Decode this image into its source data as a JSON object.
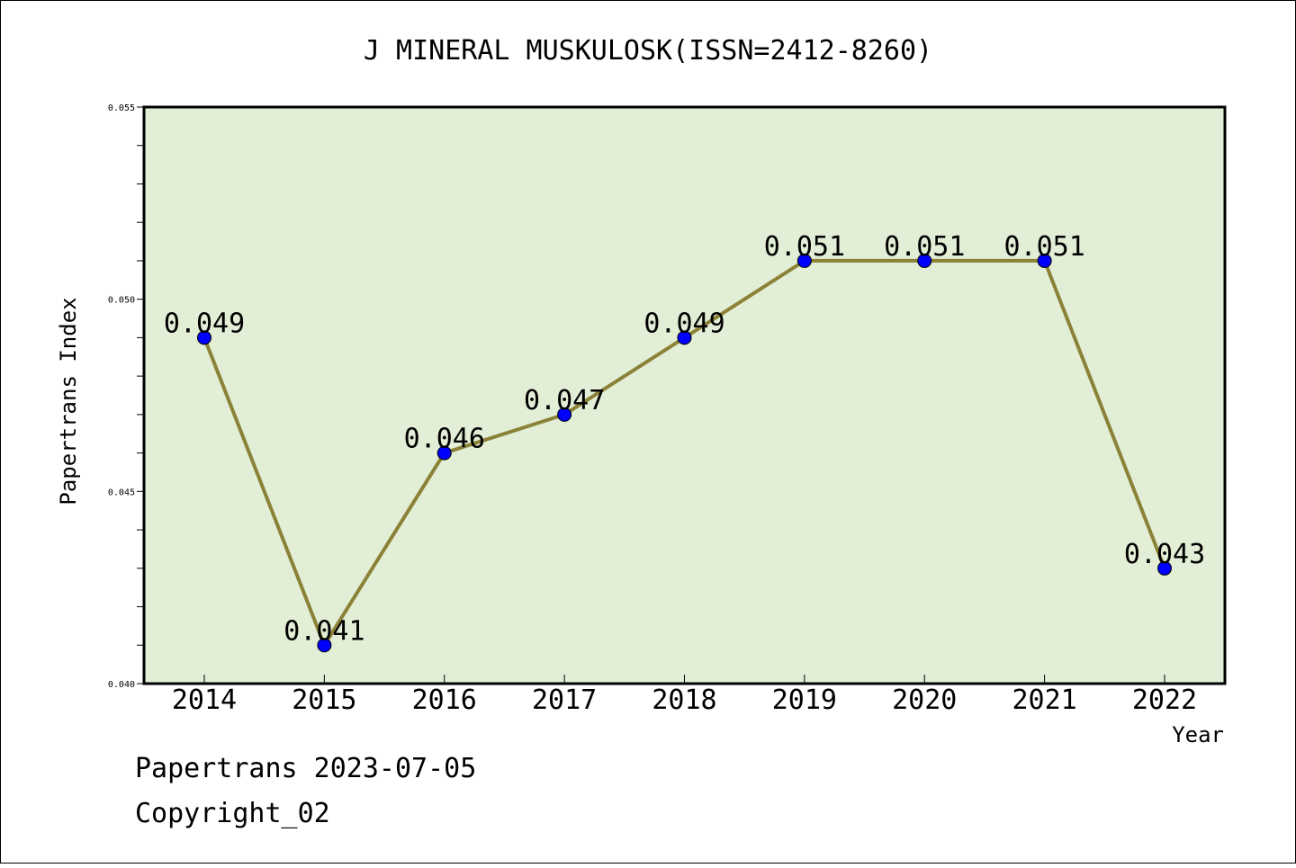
{
  "chart_data": {
    "type": "line",
    "title": "J MINERAL MUSKULOSK(ISSN=2412-8260)",
    "xlabel": "Year",
    "ylabel": "Papertrans Index",
    "categories": [
      "2014",
      "2015",
      "2016",
      "2017",
      "2018",
      "2019",
      "2020",
      "2021",
      "2022"
    ],
    "series": [
      {
        "values": [
          0.049,
          0.041,
          0.046,
          0.047,
          0.049,
          0.051,
          0.051,
          0.051,
          0.043
        ],
        "labels": [
          "0.049",
          "0.041",
          "0.046",
          "0.047",
          "0.049",
          "0.051",
          "0.051",
          "0.051",
          "0.043"
        ]
      }
    ],
    "ylim": [
      0.04,
      0.055
    ],
    "yticks": [
      0.04,
      0.045,
      0.05,
      0.055
    ],
    "ytick_labels": [
      "0.040",
      "0.045",
      "0.050",
      "0.055"
    ],
    "y_minor_step": 0.001,
    "grid": false,
    "colors": {
      "plot_background": "#e2efd6",
      "line": "#8b8238",
      "marker": "#0000ff",
      "frame": "#000000"
    }
  },
  "footer": {
    "date_line": "Papertrans 2023-07-05",
    "copyright": "Copyright_02"
  }
}
